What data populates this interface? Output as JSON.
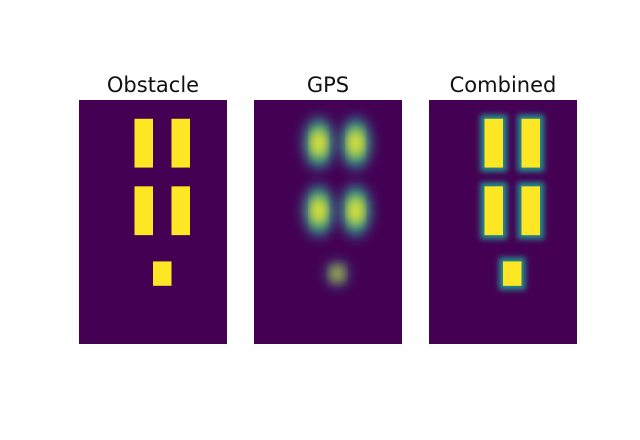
{
  "chart_data": [
    {
      "type": "heatmap",
      "title": "Obstacle",
      "colormap": "viridis",
      "value_range": [
        0,
        1
      ],
      "grid_columns": 8,
      "grid_rows": 13,
      "cells": [
        {
          "col": 3,
          "row": 1,
          "w": 1,
          "h": 2.6,
          "value": 1.0
        },
        {
          "col": 5,
          "row": 1,
          "w": 1,
          "h": 2.6,
          "value": 1.0
        },
        {
          "col": 3,
          "row": 4.6,
          "w": 1,
          "h": 2.6,
          "value": 1.0
        },
        {
          "col": 5,
          "row": 4.6,
          "w": 1,
          "h": 2.6,
          "value": 1.0
        },
        {
          "col": 4,
          "row": 8.6,
          "w": 1,
          "h": 1.3,
          "value": 1.0
        }
      ]
    },
    {
      "type": "heatmap",
      "title": "GPS",
      "colormap": "viridis",
      "value_range": [
        0,
        1
      ],
      "grid_columns": 8,
      "grid_rows": 13,
      "cells": [
        {
          "col": 3,
          "row": 1,
          "w": 1,
          "h": 2.6,
          "value": 1.0
        },
        {
          "col": 5,
          "row": 1,
          "w": 1,
          "h": 2.6,
          "value": 1.0
        },
        {
          "col": 3,
          "row": 4.6,
          "w": 1,
          "h": 2.6,
          "value": 1.0
        },
        {
          "col": 5,
          "row": 4.6,
          "w": 1,
          "h": 2.6,
          "value": 1.0
        },
        {
          "col": 4,
          "row": 8.6,
          "w": 1,
          "h": 1.3,
          "value": 0.7
        }
      ]
    },
    {
      "type": "heatmap",
      "title": "Combined",
      "colormap": "viridis",
      "value_range": [
        0,
        1
      ],
      "grid_columns": 8,
      "grid_rows": 13,
      "cells": [
        {
          "col": 3,
          "row": 1,
          "w": 1,
          "h": 2.6,
          "value": 1.0
        },
        {
          "col": 5,
          "row": 1,
          "w": 1,
          "h": 2.6,
          "value": 1.0
        },
        {
          "col": 3,
          "row": 4.6,
          "w": 1,
          "h": 2.6,
          "value": 1.0
        },
        {
          "col": 5,
          "row": 4.6,
          "w": 1,
          "h": 2.6,
          "value": 1.0
        },
        {
          "col": 4,
          "row": 8.6,
          "w": 1,
          "h": 1.3,
          "value": 1.0
        }
      ]
    }
  ],
  "colors": {
    "background": "#440154",
    "high": "#fde725",
    "mid_high": "#5ec962",
    "mid": "#21918c",
    "mid_low": "#3b528b"
  }
}
